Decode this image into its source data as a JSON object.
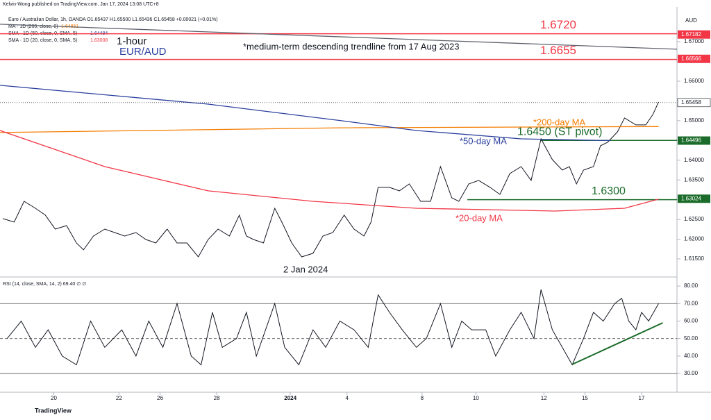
{
  "header": {
    "publisher": "Kelvin-Wong published on TradingView.com, Jan 17, 2024 13:08 UTC+8",
    "symbol": "Euro / Australian Dollar, 1h, OANDA  O1.65437 H1.65500 L1.65436 C1.65458 +0.00021 (+0.01%)",
    "ma200": "MA · 1D (200, close, 0)",
    "ma200_value": "1.64851",
    "ma50": "SMA · 1D (50, close, 0, SMA, 5)",
    "ma50_value": "1.64484",
    "ma20": "SMA · 1D (20, close, 0, SMA, 5)",
    "ma20_value": "1.63008",
    "currency": "AUD",
    "footer": "TradingView"
  },
  "chart_data": [
    {
      "type": "line",
      "title": "1-hour",
      "subtitle": "EUR/AUD",
      "annotations": [
        "*medium-term descending trendline from 17 Aug 2023",
        "*200-day MA",
        "*50-day MA",
        "*20-day MA",
        "2 Jan 2024"
      ],
      "xlim": [
        0,
        478
      ],
      "ylim": [
        1.6106,
        1.6788
      ],
      "xticks": [
        {
          "value": 38,
          "label": "20"
        },
        {
          "value": 84,
          "label": "22"
        },
        {
          "value": 113,
          "label": "26"
        },
        {
          "value": 153,
          "label": "28"
        },
        {
          "value": 205,
          "label": "2024"
        },
        {
          "value": 245,
          "label": "4"
        },
        {
          "value": 298,
          "label": "8"
        },
        {
          "value": 336,
          "label": "10"
        },
        {
          "value": 384,
          "label": "12"
        },
        {
          "value": 413,
          "label": "15"
        },
        {
          "value": 453,
          "label": "17"
        }
      ],
      "yticks": [
        {
          "value": 1.615,
          "label": "1.61500"
        },
        {
          "value": 1.62,
          "label": "1.62000"
        },
        {
          "value": 1.625,
          "label": "1.62500"
        },
        {
          "value": 1.63,
          "label": "1.63000"
        },
        {
          "value": 1.635,
          "label": "1.63500"
        },
        {
          "value": 1.64,
          "label": "1.64000"
        },
        {
          "value": 1.645,
          "label": "1.64500"
        },
        {
          "value": 1.65,
          "label": "1.65000"
        },
        {
          "value": 1.655,
          "label": "1.65500"
        },
        {
          "value": 1.66,
          "label": "1.66000"
        },
        {
          "value": 1.665,
          "label": "1.66500"
        },
        {
          "value": 1.67,
          "label": "1.67000"
        }
      ],
      "levels": [
        {
          "value": 1.672,
          "label": "1.6720",
          "color": "#f23645"
        },
        {
          "value": 1.6655,
          "label": "1.6655",
          "color": "#f23645"
        },
        {
          "value": 1.645,
          "label": "1.6450 (ST pivot)",
          "color": "#1b6b2a",
          "x0": 382
        },
        {
          "value": 1.63,
          "label": "1.6300",
          "color": "#1b6b2a",
          "x0": 330
        }
      ],
      "badges": [
        {
          "value": 1.67182,
          "label": "1.67182",
          "color": "#f23645"
        },
        {
          "value": 1.66566,
          "label": "1.66566",
          "color": "#f23645"
        },
        {
          "value": 1.65458,
          "label": "1.65458",
          "color": "#ffffff"
        },
        {
          "value": 1.64496,
          "label": "1.64496",
          "color": "#1b6b2a"
        },
        {
          "value": 1.63024,
          "label": "1.63024",
          "color": "#1b6b2a"
        }
      ],
      "series": [
        {
          "name": "EUR/AUD",
          "color": "#131722",
          "x": [
            2,
            10,
            17,
            25,
            32,
            39,
            47,
            54,
            59,
            66,
            74,
            81,
            88,
            96,
            103,
            110,
            118,
            125,
            132,
            140,
            147,
            154,
            162,
            169,
            174,
            179,
            186,
            194,
            199,
            206,
            213,
            221,
            228,
            235,
            243,
            250,
            257,
            262,
            267,
            275,
            282,
            289,
            297,
            304,
            311,
            319,
            324,
            331,
            338,
            346,
            353,
            360,
            368,
            375,
            382,
            390,
            397,
            402,
            407,
            412,
            419,
            424,
            429,
            436,
            441,
            449,
            456,
            461,
            465
          ],
          "values": [
            1.6252,
            1.62432,
            1.62959,
            1.62783,
            1.62608,
            1.62256,
            1.62344,
            1.61904,
            1.61729,
            1.6208,
            1.62256,
            1.62168,
            1.6208,
            1.62168,
            1.61992,
            1.61904,
            1.62256,
            1.61904,
            1.61904,
            1.61553,
            1.61992,
            1.62256,
            1.6208,
            1.62608,
            1.6208,
            1.61992,
            1.61904,
            1.62783,
            1.62432,
            1.61904,
            1.61553,
            1.61641,
            1.6208,
            1.62168,
            1.62608,
            1.62256,
            1.6208,
            1.62432,
            1.63311,
            1.63311,
            1.63223,
            1.63399,
            1.62959,
            1.62959,
            1.63838,
            1.63047,
            1.62959,
            1.63399,
            1.63487,
            1.63311,
            1.63135,
            1.63662,
            1.63838,
            1.63487,
            1.64541,
            1.64014,
            1.6375,
            1.63838,
            1.63399,
            1.6375,
            1.63838,
            1.64366,
            1.64453,
            1.64717,
            1.65069,
            1.64893,
            1.64893,
            1.65157,
            1.65473
          ]
        },
        {
          "name": "200-day MA",
          "color": "#f57c00",
          "x": [
            0,
            240,
            465
          ],
          "values": [
            1.647,
            1.6482,
            1.64851
          ]
        },
        {
          "name": "50-day MA",
          "color": "#2a3f9e",
          "x": [
            0,
            147,
            245,
            294,
            368,
            431
          ],
          "values": [
            1.65895,
            1.6542,
            1.64981,
            1.64752,
            1.64541,
            1.64496
          ]
        },
        {
          "name": "20-day MA",
          "color": "#f23645",
          "x": [
            0,
            74,
            147,
            221,
            294,
            392,
            441,
            465
          ],
          "values": [
            1.64752,
            1.63838,
            1.63223,
            1.62959,
            1.62783,
            1.62713,
            1.62783,
            1.63012
          ]
        },
        {
          "name": "trendline",
          "color": "#5d606b",
          "x": [
            0,
            478
          ],
          "values": [
            1.67442,
            1.66809
          ]
        }
      ]
    },
    {
      "type": "line",
      "title": "RSI (14, close, SMA, 14, 2)  69.40  ∅  ∅",
      "xlim": [
        0,
        478
      ],
      "ylim": [
        19.3,
        84.8
      ],
      "yticks": [
        {
          "value": 30,
          "label": "30.00"
        },
        {
          "value": 40,
          "label": "40.00"
        },
        {
          "value": 50,
          "label": "50.00"
        },
        {
          "value": 60,
          "label": "60.00"
        },
        {
          "value": 70,
          "label": "70.00"
        },
        {
          "value": 80,
          "label": "80.00"
        }
      ],
      "levels": [
        {
          "value": 70
        },
        {
          "value": 50
        },
        {
          "value": 30
        }
      ],
      "series": [
        {
          "name": "RSI",
          "color": "#131722",
          "x": [
            5,
            15,
            25,
            34,
            44,
            54,
            64,
            74,
            86,
            96,
            105,
            115,
            125,
            135,
            142,
            150,
            157,
            167,
            174,
            181,
            194,
            201,
            211,
            221,
            230,
            240,
            250,
            260,
            267,
            275,
            284,
            294,
            301,
            311,
            319,
            326,
            333,
            343,
            350,
            360,
            368,
            377,
            382,
            390,
            397,
            404,
            412,
            419,
            426,
            434,
            439,
            444,
            449,
            453,
            458,
            465
          ],
          "values": [
            50,
            60,
            45,
            55,
            40,
            35,
            60,
            45,
            55,
            40,
            60,
            45,
            70,
            40,
            35,
            65,
            45,
            50,
            65,
            40,
            70,
            45,
            35,
            55,
            45,
            60,
            55,
            45,
            75,
            65,
            55,
            45,
            50,
            70,
            45,
            60,
            55,
            55,
            40,
            55,
            65,
            50,
            78,
            55,
            45,
            35,
            50,
            65,
            60,
            70,
            73,
            60,
            55,
            65,
            60,
            70
          ]
        },
        {
          "name": "RSI trendline",
          "color": "#1b6b2a",
          "x": [
            404,
            468
          ],
          "values": [
            35.2,
            59
          ]
        }
      ]
    }
  ]
}
